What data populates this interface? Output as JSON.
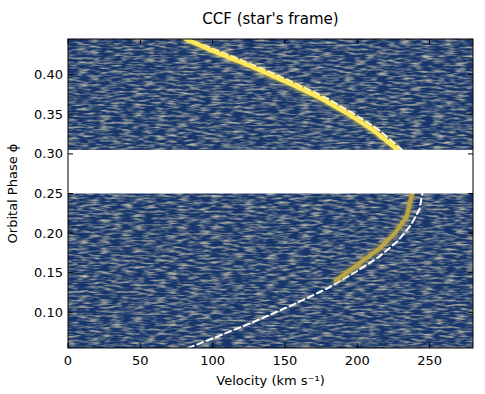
{
  "chart_data": {
    "type": "line",
    "title": "CCF (star's frame)",
    "x_label": "Velocity (km s⁻¹)",
    "y_label": "Orbital Phase ϕ",
    "xlim": [
      0,
      280
    ],
    "xticks": [
      0,
      50,
      100,
      150,
      200,
      250
    ],
    "ylim": [
      0.055,
      0.445
    ],
    "yticks": [
      {
        "value": 0.1,
        "label": "0.10"
      },
      0.15,
      {
        "value": 0.2,
        "label": "0.20"
      },
      0.25,
      {
        "value": 0.3,
        "label": "0.30"
      },
      0.35,
      {
        "value": 0.4,
        "label": "0.40"
      }
    ],
    "masked_phase": [
      0.25,
      0.305
    ],
    "series": [
      {
        "color": "#ffffff",
        "line_style": "dashed",
        "x": [
          83,
          104,
          131,
          156,
          179,
          198,
          215,
          228,
          237,
          243,
          245,
          null,
          231,
          215,
          198,
          179,
          156,
          131,
          104,
          83
        ],
        "values": [
          0.055,
          0.07,
          0.09,
          0.11,
          0.13,
          0.15,
          0.17,
          0.19,
          0.21,
          0.23,
          0.25,
          null,
          0.305,
          0.33,
          0.35,
          0.37,
          0.39,
          0.41,
          0.43,
          0.445
        ]
      },
      {
        "color": "#b9a545",
        "line_style": "solid",
        "x": [
          185,
          200,
          215,
          226,
          234,
          238
        ],
        "values": [
          0.14,
          0.16,
          0.18,
          0.2,
          0.22,
          0.25
        ]
      },
      {
        "color": "#ffe85a",
        "line_style": "solid",
        "x": [
          228,
          211,
          194,
          175,
          152,
          127,
          100,
          81
        ],
        "values": [
          0.305,
          0.33,
          0.35,
          0.37,
          0.39,
          0.41,
          0.43,
          0.445
        ]
      }
    ]
  }
}
